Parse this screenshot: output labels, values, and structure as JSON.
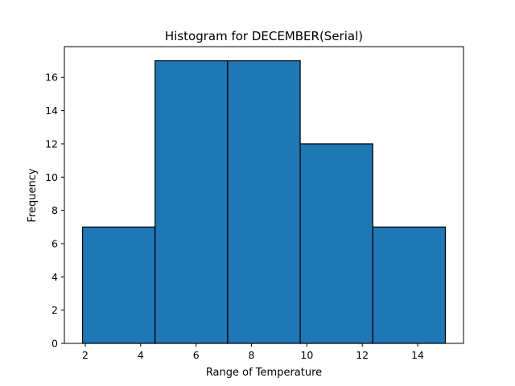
{
  "chart_data": {
    "type": "bar",
    "title": "Histogram for DECEMBER(Serial)",
    "xlabel": "Range of Temperature",
    "ylabel": "Frequency",
    "bin_edges": [
      1.9,
      4.52,
      7.14,
      9.76,
      12.38,
      15.0
    ],
    "values": [
      7,
      17,
      17,
      12,
      7
    ],
    "xlim": [
      1.245,
      15.655
    ],
    "ylim": [
      0,
      17.85
    ],
    "xticks": [
      2,
      4,
      6,
      8,
      10,
      12,
      14
    ],
    "yticks": [
      0,
      2,
      4,
      6,
      8,
      10,
      12,
      14,
      16
    ],
    "bar_color": "#1f77b4",
    "edge_color": "#000000",
    "grid": false
  }
}
